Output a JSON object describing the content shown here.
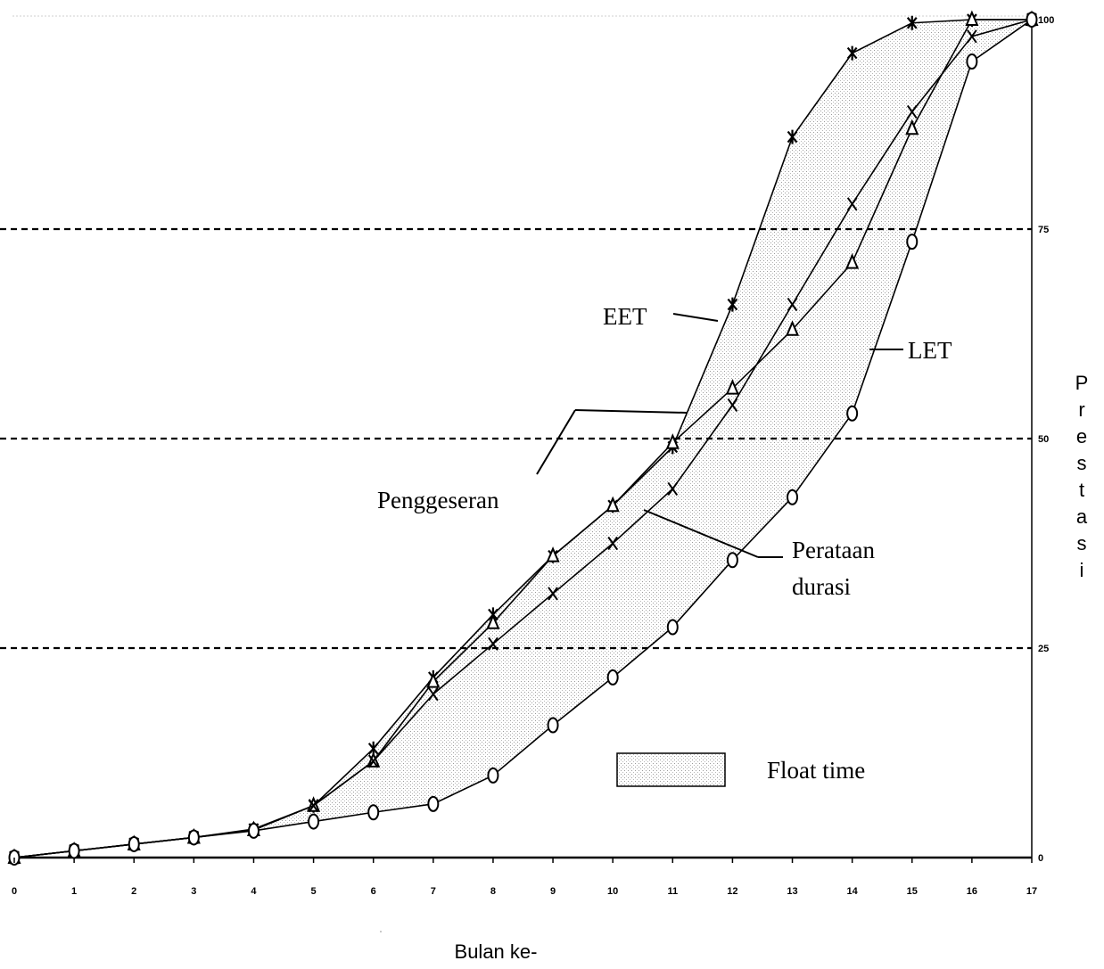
{
  "chart_data": {
    "type": "line",
    "x": [
      0,
      1,
      2,
      3,
      4,
      5,
      6,
      7,
      8,
      9,
      10,
      11,
      12,
      13,
      14,
      15,
      16,
      17
    ],
    "xticks": [
      "0",
      "1",
      "2",
      "3",
      "4",
      "5",
      "6",
      "7",
      "8",
      "9",
      "10",
      "11",
      "12",
      "13",
      "14",
      "15",
      "16",
      "17"
    ],
    "ylim": [
      0,
      100
    ],
    "yticks": [
      "0",
      "25",
      "50",
      "75",
      "100"
    ],
    "xlabel": "Bulan ke-",
    "ylabel": "Prestasi",
    "gridlines_y": [
      25,
      50,
      75
    ],
    "series": [
      {
        "values": [
          0,
          0.8,
          1.6,
          2.4,
          3.4,
          6.2,
          13,
          21.5,
          29,
          36,
          42,
          49,
          66,
          86,
          96,
          99.6,
          100,
          100
        ],
        "marker": "star"
      },
      {
        "values": [
          0,
          0.8,
          1.6,
          2.4,
          3.3,
          6.2,
          11.5,
          21,
          28,
          36,
          42,
          49.5,
          56,
          63,
          71,
          87,
          100,
          100
        ],
        "marker": "triangle"
      },
      {
        "values": [
          0,
          0.8,
          1.6,
          2.4,
          3.3,
          6.2,
          11.5,
          19.5,
          25.5,
          31.5,
          37.5,
          44,
          54,
          66,
          78,
          89,
          98,
          100
        ],
        "marker": "x"
      },
      {
        "values": [
          0,
          0.8,
          1.6,
          2.4,
          3.2,
          4.3,
          5.4,
          6.4,
          9.8,
          15.8,
          21.5,
          27.5,
          35.5,
          43,
          53,
          73.5,
          95,
          100
        ],
        "marker": "circle"
      }
    ],
    "annotations": {
      "eet": "EET",
      "let": "LET",
      "penggeseran": "Penggeseran",
      "perataan_1": "Perataan",
      "perataan_2": "durasi"
    },
    "legend": {
      "label": "Float time",
      "position": "bottom-right"
    }
  }
}
